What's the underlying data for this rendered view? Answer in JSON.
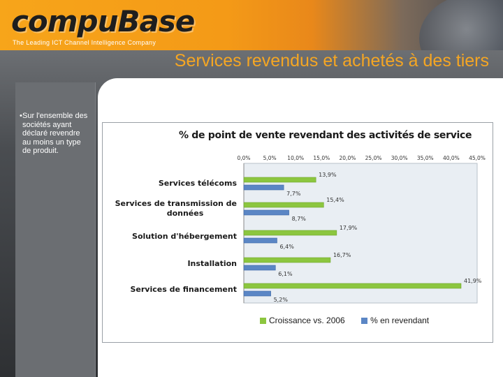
{
  "header": {
    "logo_text": "compuBase",
    "tagline": "The Leading ICT Channel Intelligence Company"
  },
  "slide_title": "Services revendus et achetés à des tiers",
  "bullet": {
    "marker": "•",
    "text": "Sur l'ensemble des sociétés ayant déclaré revendre au moins un type de produit."
  },
  "colors": {
    "accent_title": "#f5a623",
    "series_green": "#8cc63f",
    "series_blue": "#5b86c5",
    "plot_bg": "#e9eef3"
  },
  "chart_data": {
    "type": "bar",
    "orientation": "horizontal",
    "title": "% de point de vente revendant des activités de service",
    "categories": [
      "Services télécoms",
      "Services de transmission de données",
      "Solution d'hébergement",
      "Installation",
      "Services de financement"
    ],
    "category_lines": [
      [
        "Services télécoms"
      ],
      [
        "Services de transmission de",
        "données"
      ],
      [
        "Solution d'hébergement"
      ],
      [
        "Installation"
      ],
      [
        "Services de financement"
      ]
    ],
    "series": [
      {
        "name": "Croissance vs. 2006",
        "color": "#8cc63f",
        "values": [
          13.9,
          15.4,
          17.9,
          16.7,
          41.9
        ],
        "labels": [
          "13,9%",
          "15,4%",
          "17,9%",
          "16,7%",
          "41,9%"
        ]
      },
      {
        "name": "% en revendant",
        "color": "#5b86c5",
        "values": [
          7.7,
          8.7,
          6.4,
          6.1,
          5.2
        ],
        "labels": [
          "7,7%",
          "8,7%",
          "6,4%",
          "6,1%",
          "5,2%"
        ]
      }
    ],
    "xlim": [
      0,
      45
    ],
    "ticks": [
      "0,0%",
      "5,0%",
      "10,0%",
      "15,0%",
      "20,0%",
      "25,0%",
      "30,0%",
      "35,0%",
      "40,0%",
      "45,0%"
    ],
    "axis_position": "top",
    "grid": false,
    "legend_position": "bottom"
  }
}
